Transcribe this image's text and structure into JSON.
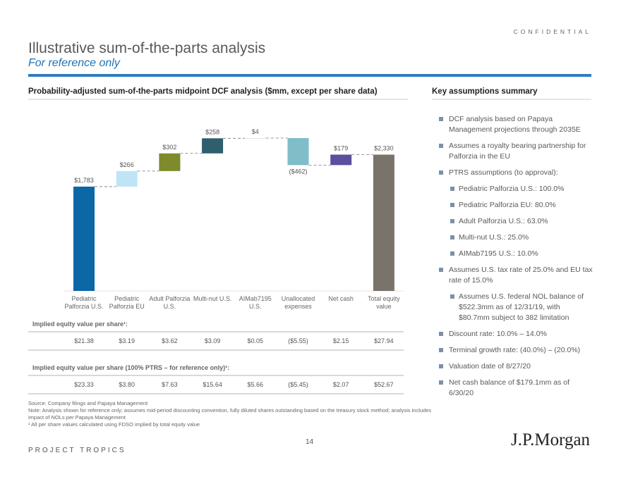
{
  "header": {
    "confidential": "CONFIDENTIAL",
    "title": "Illustrative sum-of-the-parts analysis",
    "subtitle": "For reference only"
  },
  "chart_data": {
    "type": "waterfall",
    "title": "Probability-adjusted sum-of-the-parts midpoint DCF analysis ($mm, except per share data)",
    "categories": [
      "Pediatric Palforzia U.S.",
      "Pediatric Palforzia EU",
      "Adult Palforzia U.S.",
      "Multi-nut U.S.",
      "AIMab7195 U.S.",
      "Unallocated expenses",
      "Net cash",
      "Total equity value"
    ],
    "values": [
      1783,
      266,
      302,
      258,
      4,
      -462,
      179,
      2330
    ],
    "value_labels": [
      "$1,783",
      "$266",
      "$302",
      "$258",
      "$4",
      "($462)",
      "$179",
      "$2,330"
    ],
    "measures": [
      "relative",
      "relative",
      "relative",
      "relative",
      "relative",
      "relative",
      "relative",
      "total"
    ],
    "colors": [
      "#0b67a5",
      "#bfe4f6",
      "#7f8a2c",
      "#2f5e6d",
      "#9aa5ab",
      "#7fbdc9",
      "#5b4f9f",
      "#7a736b"
    ]
  },
  "table": {
    "sections": [
      {
        "label": "Implied equity value per share¹:",
        "cells": [
          "$21.38",
          "$3.19",
          "$3.62",
          "$3.09",
          "$0.05",
          "($5.55)",
          "$2.15",
          "$27.94"
        ]
      },
      {
        "label": "Implied equity value per share (100% PTRS – for reference only)¹:",
        "cells": [
          "$23.33",
          "$3.80",
          "$7.63",
          "$15.64",
          "$5.66",
          "($5.45)",
          "$2.07",
          "$52.67"
        ]
      }
    ]
  },
  "assumptions": {
    "title": "Key assumptions summary",
    "items": [
      {
        "text": "DCF analysis based on Papaya Management projections through 2035E",
        "level": 1
      },
      {
        "text": "Assumes a royalty bearing partnership for Palforzia in the EU",
        "level": 1
      },
      {
        "text": "PTRS assumptions (to approval):",
        "level": 1
      },
      {
        "text": "Pediatric Palforzia U.S.: 100.0%",
        "level": 2
      },
      {
        "text": "Pediatric Palforzia EU: 80.0%",
        "level": 2
      },
      {
        "text": "Adult Palforzia U.S.: 63.0%",
        "level": 2
      },
      {
        "text": "Multi-nut U.S.: 25.0%",
        "level": 2
      },
      {
        "text": "AIMab7195 U.S.: 10.0%",
        "level": 2
      },
      {
        "text": "Assumes U.S. tax rate of 25.0% and EU tax rate of 15.0%",
        "level": 1
      },
      {
        "text": "Assumes U.S. federal NOL balance of $522.3mm as of 12/31/19, with $80.7mm subject to 382 limitation",
        "level": 2
      },
      {
        "text": "Discount rate: 10.0% – 14.0%",
        "level": 1
      },
      {
        "text": "Terminal growth rate: (40.0%) – (20.0%)",
        "level": 1
      },
      {
        "text": "Valuation date of 8/27/20",
        "level": 1
      },
      {
        "text": "Net cash balance of $179.1mm as of 6/30/20",
        "level": 1
      }
    ]
  },
  "footnotes": [
    "Source: Company filings and Papaya Management",
    "Note: Analysis shown for reference only; assumes mid-period discounting convention, fully diluted shares outstanding based on the treasury stock method; analysis includes impact of NOLs per Papaya Management",
    "¹ All per share values calculated using FDSO implied by total equity value"
  ],
  "footer": {
    "page": "14",
    "project": "PROJECT TROPICS",
    "logo": "J.P.Morgan"
  }
}
